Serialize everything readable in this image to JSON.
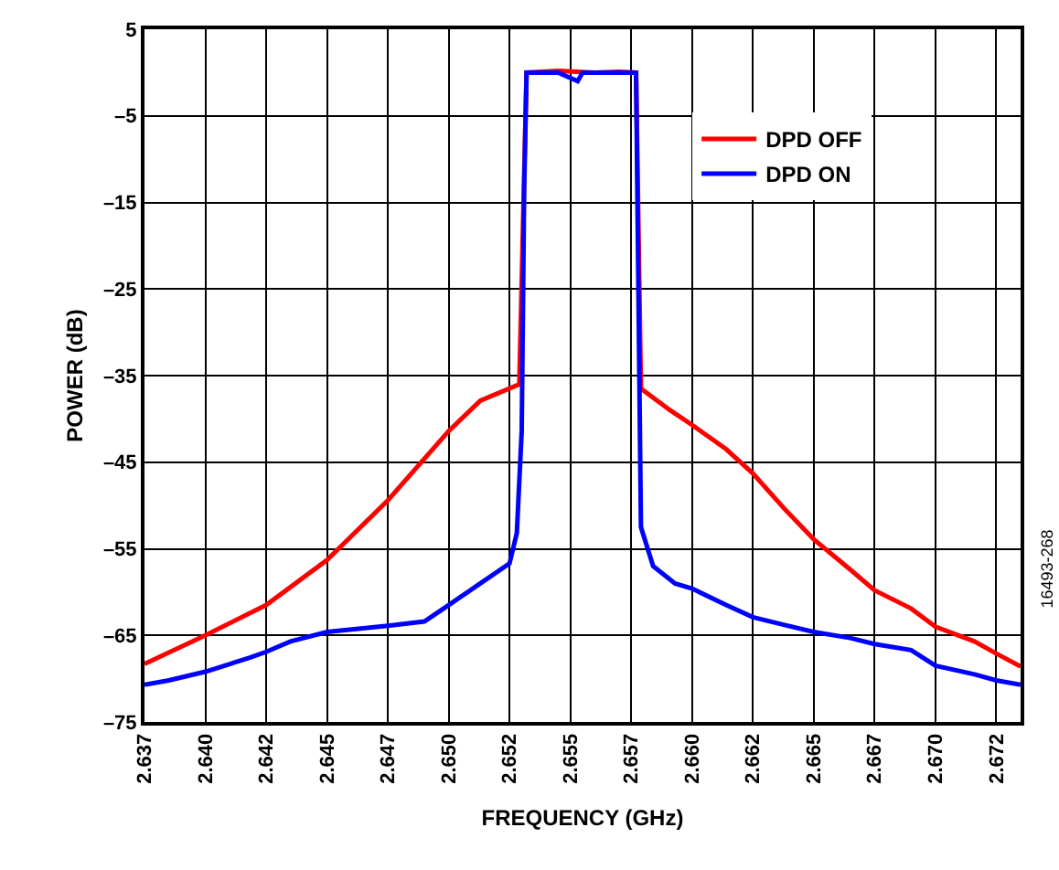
{
  "chart_data": {
    "type": "line",
    "xlabel": "FREQUENCY (GHz)",
    "ylabel": "POWER (dB)",
    "xlim": [
      2.637,
      2.673
    ],
    "ylim": [
      -75,
      5
    ],
    "xticks": [
      {
        "value": 2.637,
        "label": "2.637"
      },
      {
        "value": 2.6395,
        "label": "2.640"
      },
      {
        "value": 2.642,
        "label": "2.642"
      },
      {
        "value": 2.6445,
        "label": "2.645"
      },
      {
        "value": 2.647,
        "label": "2.647"
      },
      {
        "value": 2.6495,
        "label": "2.650"
      },
      {
        "value": 2.652,
        "label": "2.652"
      },
      {
        "value": 2.6545,
        "label": "2.655"
      },
      {
        "value": 2.657,
        "label": "2.657"
      },
      {
        "value": 2.6595,
        "label": "2.660"
      },
      {
        "value": 2.662,
        "label": "2.662"
      },
      {
        "value": 2.6645,
        "label": "2.665"
      },
      {
        "value": 2.667,
        "label": "2.667"
      },
      {
        "value": 2.6695,
        "label": "2.670"
      },
      {
        "value": 2.672,
        "label": "2.672"
      }
    ],
    "yticks": [
      5,
      {
        "value": -5,
        "label": "–5"
      },
      {
        "value": -15,
        "label": "–15"
      },
      {
        "value": -25,
        "label": "–25"
      },
      {
        "value": -35,
        "label": "–35"
      },
      {
        "value": -45,
        "label": "–45"
      },
      {
        "value": -55,
        "label": "–55"
      },
      {
        "value": -65,
        "label": "–65"
      },
      {
        "value": -75,
        "label": "–75"
      }
    ],
    "grid": true,
    "legend": "top right",
    "marker": "none",
    "line_style": "solid",
    "series": [
      {
        "name": "DPD OFF",
        "color": "#ff0000",
        "x": [
          2.637,
          2.6395,
          2.642,
          2.6445,
          2.647,
          2.6495,
          2.6508,
          2.6524,
          2.6527,
          2.654,
          2.6555,
          2.6565,
          2.6572,
          2.6574,
          2.6586,
          2.6595,
          2.6609,
          2.662,
          2.6633,
          2.6645,
          2.666,
          2.667,
          2.6685,
          2.6695,
          2.6711,
          2.672,
          2.673
        ],
        "values": [
          -68.3,
          -65,
          -61.5,
          -56.3,
          -49.4,
          -41.4,
          -37.9,
          -36,
          0,
          0.2,
          0,
          0.1,
          0,
          -36.5,
          -39,
          -40.7,
          -43.5,
          -46.3,
          -50.4,
          -53.9,
          -57.4,
          -59.8,
          -61.9,
          -64,
          -65.7,
          -67.1,
          -68.6
        ]
      },
      {
        "name": "DPD ON",
        "color": "#0000ff",
        "x": [
          2.637,
          2.638,
          2.6395,
          2.6413,
          2.642,
          2.643,
          2.6445,
          2.647,
          2.6485,
          2.6495,
          2.6508,
          2.652,
          2.6523,
          2.6525,
          2.6526,
          2.6527,
          2.654,
          2.6548,
          2.655,
          2.6565,
          2.6572,
          2.6574,
          2.6579,
          2.6588,
          2.6595,
          2.6609,
          2.662,
          2.6633,
          2.6645,
          2.666,
          2.667,
          2.6685,
          2.6695,
          2.6711,
          2.672,
          2.673
        ],
        "values": [
          -70.7,
          -70.2,
          -69.2,
          -67.6,
          -66.9,
          -65.7,
          -64.6,
          -63.9,
          -63.4,
          -61.5,
          -59,
          -56.7,
          -53.2,
          -41.4,
          -13.6,
          0,
          0,
          -1,
          0,
          0,
          0,
          -52.5,
          -57,
          -59,
          -59.6,
          -61.5,
          -62.9,
          -63.8,
          -64.6,
          -65.3,
          -66,
          -66.7,
          -68.5,
          -69.5,
          -70.2,
          -70.7
        ]
      }
    ],
    "annotations": [
      "16493-268"
    ]
  }
}
